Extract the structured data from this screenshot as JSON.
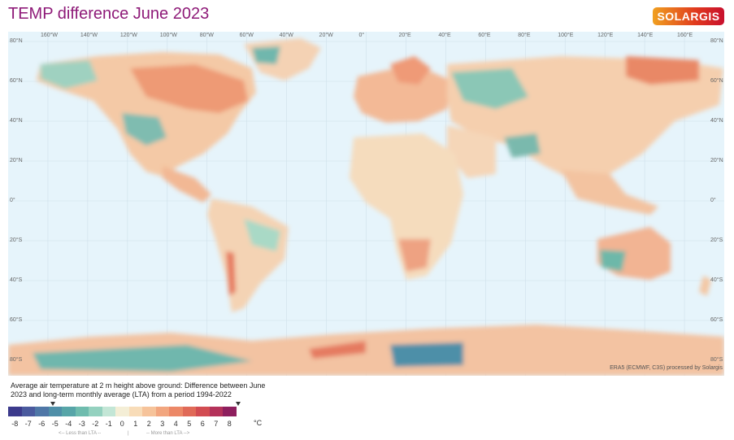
{
  "title": "TEMP difference June 2023",
  "logo": "SOLARGIS",
  "map": {
    "longitude_labels": [
      "160°W",
      "140°W",
      "120°W",
      "100°W",
      "80°W",
      "60°W",
      "40°W",
      "20°W",
      "0°",
      "20°E",
      "40°E",
      "60°E",
      "80°E",
      "100°E",
      "120°E",
      "140°E",
      "160°E"
    ],
    "latitude_labels_left": [
      "80°N",
      "60°N",
      "40°N",
      "20°N",
      "0°",
      "20°S",
      "40°S",
      "60°S",
      "80°S"
    ],
    "latitude_labels_right": [
      "80°N",
      "60°N",
      "40°N",
      "20°N",
      "0°",
      "20°S",
      "40°S",
      "60°S",
      "80°S"
    ],
    "ocean_color": "#e6f4fb",
    "credit": "ERA5 (ECMWF, C3S) processed by Solargis"
  },
  "legend": {
    "description": "Average air temperature at 2 m height above ground: Difference between June 2023 and long-term monthly average (LTA) from a period 1994-2022",
    "ticks": [
      "-8",
      "-7",
      "-6",
      "-5",
      "-4",
      "-3",
      "-2",
      "-1",
      "0",
      "1",
      "2",
      "3",
      "4",
      "5",
      "6",
      "7",
      "8"
    ],
    "unit": "°C",
    "colors": [
      "#3c3a8c",
      "#4a5a9e",
      "#4f77a7",
      "#4f8fa8",
      "#57a5a8",
      "#6fbcae",
      "#94d1bf",
      "#c3e6d6",
      "#f4eed6",
      "#f8dcb8",
      "#f6c39a",
      "#f2a67f",
      "#ec8867",
      "#e06a58",
      "#d24c52",
      "#b4325a",
      "#8e1f5e"
    ],
    "less_than": "<-- Less than LTA --",
    "separator": "|",
    "more_than": "-- More than LTA -->"
  }
}
